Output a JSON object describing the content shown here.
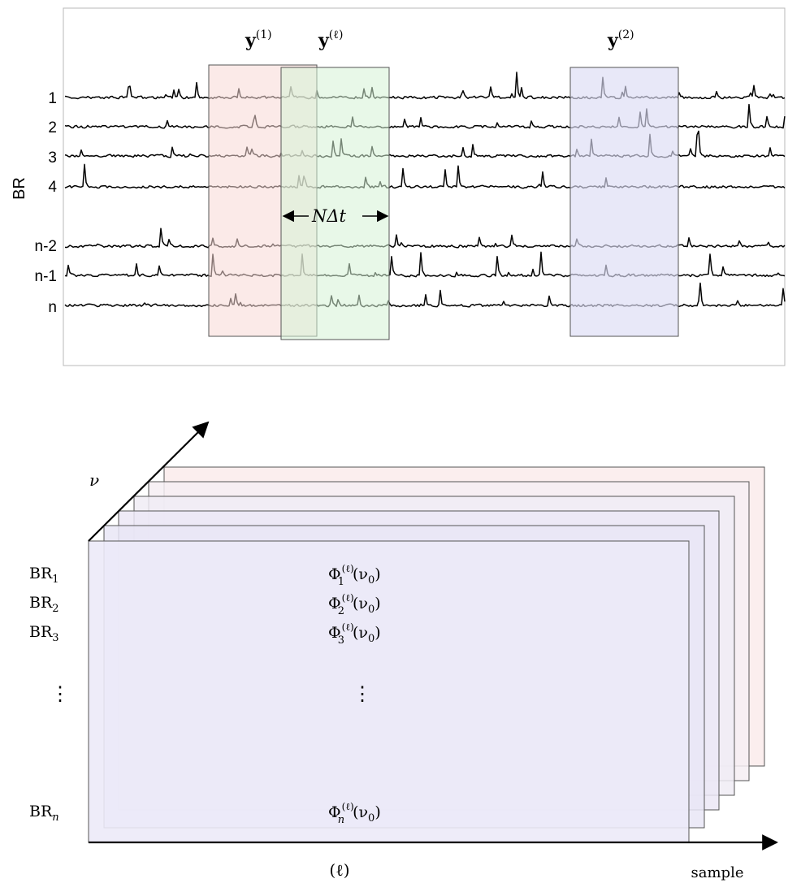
{
  "top_panel": {
    "y_axis_label": "BR",
    "channel_labels": [
      "1",
      "2",
      "3",
      "4",
      "n-2",
      "n-1",
      "n"
    ],
    "windows": [
      {
        "label_main": "y",
        "label_sup": "(1)",
        "color": "#f7d9d6"
      },
      {
        "label_main": "y",
        "label_sup": "(ℓ)",
        "color": "#d6f3d6"
      },
      {
        "label_main": "y",
        "label_sup": "(2)",
        "color": "#dcdcf5"
      }
    ],
    "shift_label_main": "NΔ",
    "shift_label_italic": "t"
  },
  "bottom_panel": {
    "frequency_axis_label": "ν",
    "row_labels": [
      {
        "main": "BR",
        "sub": "1"
      },
      {
        "main": "BR",
        "sub": "2"
      },
      {
        "main": "BR",
        "sub": "3"
      },
      {
        "main": "BR",
        "sub": "n"
      }
    ],
    "row_ellipsis": "⋮",
    "cell_ellipsis": "⋮",
    "cells": [
      {
        "main": "Φ",
        "sub": "1",
        "sup": "(ℓ)",
        "arg": "(ν",
        "arg_sub": "0",
        "close": ")"
      },
      {
        "main": "Φ",
        "sub": "2",
        "sup": "(ℓ)",
        "arg": "(ν",
        "arg_sub": "0",
        "close": ")"
      },
      {
        "main": "Φ",
        "sub": "3",
        "sup": "(ℓ)",
        "arg": "(ν",
        "arg_sub": "0",
        "close": ")"
      },
      {
        "main": "Φ",
        "sub": "n",
        "sup": "(ℓ)",
        "arg": "(ν",
        "arg_sub": "0",
        "close": ")"
      }
    ],
    "x_axis_label": "(ℓ)",
    "sample_axis_label": "sample",
    "layer_colors": [
      "#fbeeee",
      "#f6eef3",
      "#f0ecf4",
      "#ece8f6",
      "#e9e6f6",
      "#e6e4f6",
      "#eceaf8"
    ]
  }
}
